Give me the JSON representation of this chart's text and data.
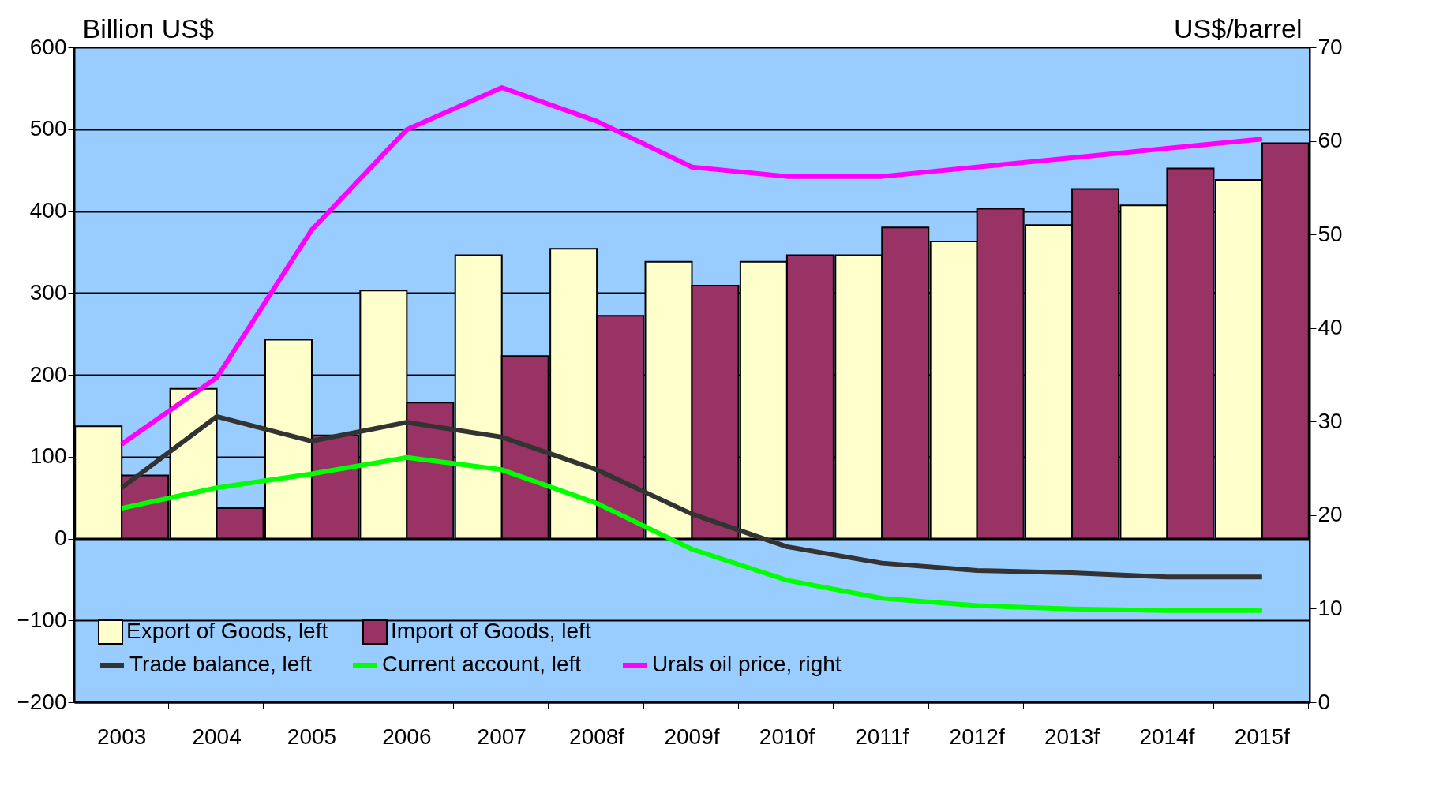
{
  "chart_data": {
    "type": "bar",
    "ylabel": "Billion US$",
    "y2label": "US$/barrel",
    "categories": [
      "2003",
      "2004",
      "2005",
      "2006",
      "2007",
      "2008f",
      "2009f",
      "2010f",
      "2011f",
      "2012f",
      "2013f",
      "2014f",
      "2015f"
    ],
    "series": [
      {
        "name": "Export of Goods, left",
        "color": "#ffffcc",
        "values": [
          137,
          183,
          243,
          303,
          346,
          354,
          338,
          338,
          346,
          363,
          383,
          407,
          438
        ]
      },
      {
        "name": "Import of Goods, left",
        "color": "#993366",
        "values": [
          77,
          37,
          126,
          166,
          223,
          272,
          309,
          346,
          380,
          403,
          427,
          452,
          483
        ]
      },
      {
        "name": "Trade balance, left",
        "type": "line",
        "color": "#333333",
        "values": [
          62,
          149,
          119,
          142,
          124,
          84,
          30,
          -10,
          -30,
          -39,
          -42,
          -47,
          -47
        ]
      },
      {
        "name": "Current account, left",
        "type": "line",
        "color": "#00ff00",
        "values": [
          37,
          62,
          79,
          99,
          84,
          43,
          -13,
          -51,
          -73,
          -82,
          -86,
          -88,
          -88
        ]
      },
      {
        "name": "Urals oil price, right",
        "type": "line",
        "axis": "y2",
        "color": "#ff00ff",
        "values": [
          27.6,
          34.7,
          50.5,
          61.2,
          65.7,
          62.1,
          57.2,
          56.2,
          56.2,
          57.2,
          58.2,
          59.2,
          60.2
        ]
      }
    ],
    "ylim": [
      -200,
      600
    ],
    "yticks": [
      -200,
      -100,
      0,
      100,
      200,
      300,
      400,
      500,
      600
    ],
    "y2lim": [
      0,
      70
    ],
    "y2ticks": [
      0,
      10,
      20,
      30,
      40,
      50,
      60,
      70
    ],
    "grid": "y",
    "legend": "bottom left"
  }
}
